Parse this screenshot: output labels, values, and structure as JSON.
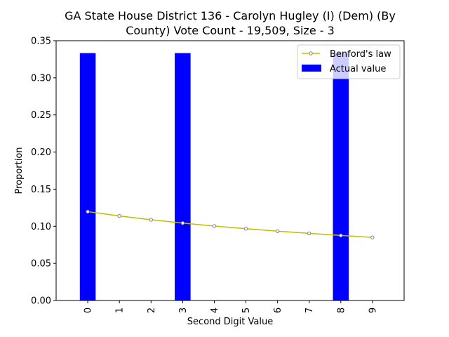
{
  "chart_data": {
    "type": "bar",
    "title_line1": "GA State House District 136 - Carolyn Hugley (I) (Dem) (By",
    "title_line2": "County) Vote Count - 19,509, Size - 3",
    "xlabel": "Second Digit Value",
    "ylabel": "Proportion",
    "categories": [
      "0",
      "1",
      "2",
      "3",
      "4",
      "5",
      "6",
      "7",
      "8",
      "9"
    ],
    "ylim": [
      0,
      0.35
    ],
    "yticks": [
      "0.00",
      "0.05",
      "0.10",
      "0.15",
      "0.20",
      "0.25",
      "0.30",
      "0.35"
    ],
    "grid": false,
    "legend_position": "top-right",
    "series": [
      {
        "name": "Actual value",
        "kind": "bar",
        "color": "#0000ff",
        "values": [
          0.3333,
          0,
          0,
          0.3333,
          0,
          0,
          0,
          0,
          0.3333,
          0
        ]
      },
      {
        "name": "Benford's law",
        "kind": "line",
        "color": "#bfbf00",
        "marker_color": "#808080",
        "values": [
          0.1197,
          0.1139,
          0.1088,
          0.1043,
          0.1003,
          0.0967,
          0.0934,
          0.0904,
          0.0876,
          0.085
        ]
      }
    ]
  }
}
